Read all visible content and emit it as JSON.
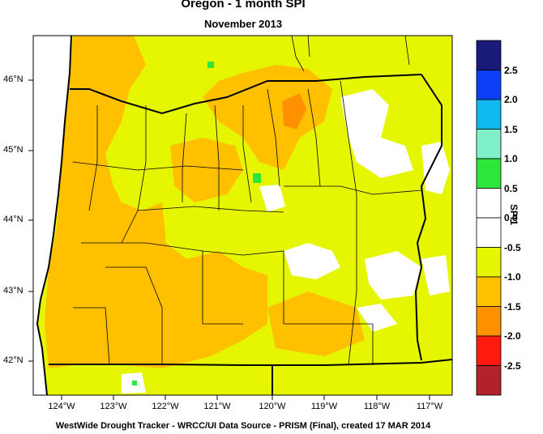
{
  "title": "Oregon - 1 month SPI",
  "subtitle": "November 2013",
  "footer": "WestWide Drought Tracker - WRCC/UI  Data Source - PRISM (Final), created 17 MAR 2014",
  "colorbar": {
    "axis_label": "SPI1",
    "tick_labels": [
      "2.5",
      "2.0",
      "1.5",
      "1.0",
      "0.5",
      "0.0",
      "-0.5",
      "-1.0",
      "-1.5",
      "-2.0",
      "-2.5"
    ],
    "bins": [
      {
        "range": ">2.5",
        "color": "#1a1a7a"
      },
      {
        "range": "2.0 to 2.5",
        "color": "#0a3ff5"
      },
      {
        "range": "1.5 to 2.0",
        "color": "#10b8f0"
      },
      {
        "range": "1.0 to 1.5",
        "color": "#7ff0c8"
      },
      {
        "range": "0.5 to 1.0",
        "color": "#2ee63a"
      },
      {
        "range": "0.0 to 0.5",
        "color": "#ffffff"
      },
      {
        "range": "-0.5 to 0.0",
        "color": "#ffffff"
      },
      {
        "range": "-1.0 to -0.5",
        "color": "#e6f500"
      },
      {
        "range": "-1.5 to -1.0",
        "color": "#ffc000"
      },
      {
        "range": "-2.0 to -1.5",
        "color": "#ff9000"
      },
      {
        "range": "-2.5 to -2.0",
        "color": "#ff1a10"
      },
      {
        "range": "<-2.5",
        "color": "#b3222a"
      }
    ]
  },
  "axes": {
    "lon_labels": [
      "124°W",
      "123°W",
      "122°W",
      "121°W",
      "120°W",
      "119°W",
      "118°W",
      "117°W"
    ],
    "lat_labels": [
      "46°N",
      "45°N",
      "44°N",
      "43°N",
      "42°N"
    ]
  },
  "map_colors": {
    "background": "#e6f500",
    "below_minus_1": "#ffc000",
    "below_minus_1_5": "#ff9000",
    "near_normal": "#ffffff",
    "wet": "#2ee63a",
    "ocean": "#ffffff",
    "boundaries": "#000000"
  }
}
